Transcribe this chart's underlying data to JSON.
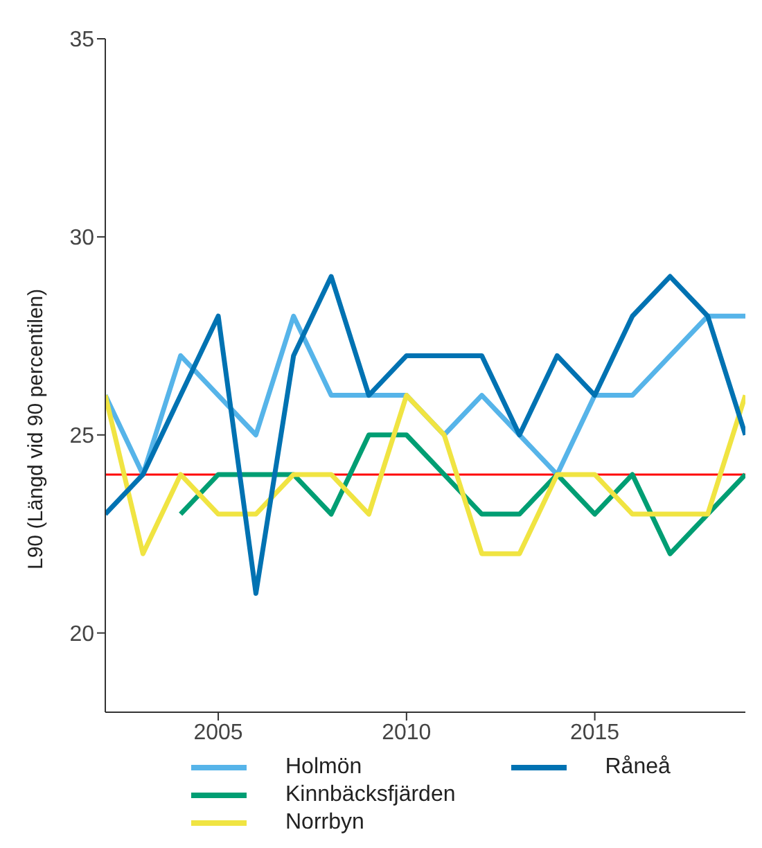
{
  "chart_data": {
    "type": "line",
    "ylabel": "L90 (Längd vid 90 percentilen)",
    "x": [
      2002,
      2003,
      2004,
      2005,
      2006,
      2007,
      2008,
      2009,
      2010,
      2011,
      2012,
      2013,
      2014,
      2015,
      2016,
      2017,
      2018,
      2019
    ],
    "series": [
      {
        "name": "Holmön",
        "color": "#56b4e9",
        "values": [
          26,
          24,
          27,
          26,
          25,
          28,
          26,
          26,
          26,
          25,
          26,
          25,
          24,
          26,
          26,
          27,
          28,
          28
        ]
      },
      {
        "name": "Kinnbäcksfjärden",
        "color": "#009e73",
        "values": [
          null,
          null,
          23,
          24,
          24,
          24,
          23,
          25,
          25,
          24,
          23,
          23,
          24,
          23,
          24,
          22,
          23,
          24
        ]
      },
      {
        "name": "Norrbyn",
        "color": "#f0e442",
        "values": [
          26,
          22,
          24,
          23,
          23,
          24,
          24,
          23,
          26,
          25,
          22,
          22,
          24,
          24,
          23,
          23,
          23,
          26
        ]
      },
      {
        "name": "Råneå",
        "color": "#0072b2",
        "values": [
          23,
          24,
          26,
          28,
          21,
          27,
          29,
          26,
          27,
          27,
          27,
          25,
          27,
          26,
          28,
          29,
          28,
          25
        ]
      }
    ],
    "xlim": [
      2002,
      2019
    ],
    "xticks": [
      2005,
      2010,
      2015
    ],
    "ylim": [
      18,
      35
    ],
    "yticks": [
      20,
      25,
      30,
      35
    ],
    "ref_lines": [
      {
        "axis": "y",
        "value": 24,
        "color": "#ff0000"
      }
    ],
    "grid": false,
    "legend": "bottom",
    "marker": "none",
    "line_style": "solid"
  }
}
